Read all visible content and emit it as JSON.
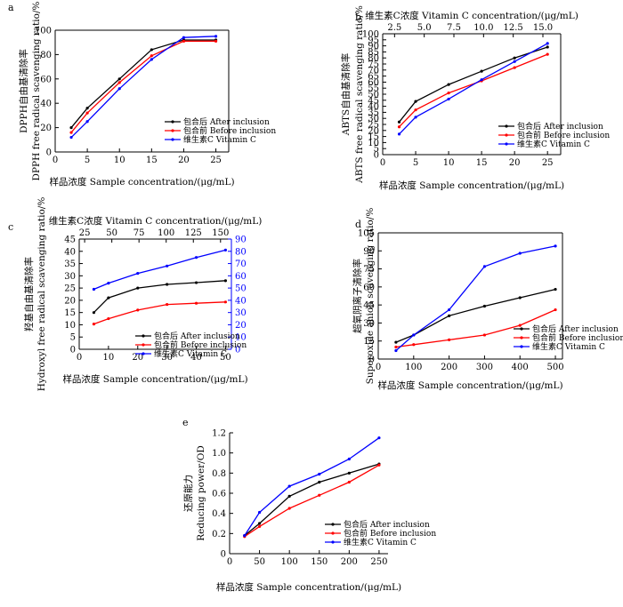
{
  "chart_data": [
    {
      "type": "line",
      "panel_label": "a",
      "xlabel": "样品浓度  Sample concentration/(μg/mL)",
      "ylabel": [
        "DPPH自由基清除率",
        "DPPH free radical scavenging ratio/%"
      ],
      "xlim": [
        0,
        27
      ],
      "ylim": [
        0,
        100
      ],
      "xticks": [
        0,
        5,
        10,
        15,
        20,
        25
      ],
      "yticks": [
        0,
        20,
        40,
        60,
        80,
        100
      ],
      "grid": false,
      "legend": "bottom-right",
      "series": [
        {
          "name": "包合后 After inclusion",
          "color": "#000000",
          "x": [
            2.5,
            5,
            10,
            15,
            20,
            25
          ],
          "y": [
            20,
            36,
            60,
            84,
            92,
            92
          ]
        },
        {
          "name": "包合前 Before inclusion",
          "color": "#ff0000",
          "x": [
            2.5,
            5,
            10,
            15,
            20,
            25
          ],
          "y": [
            16,
            32,
            57,
            79,
            91,
            91
          ]
        },
        {
          "name": "维生素C Vitamin C",
          "color": "#0000ff",
          "x": [
            2.5,
            5,
            10,
            15,
            20,
            25
          ],
          "y": [
            12,
            25,
            52,
            76,
            94,
            95
          ]
        }
      ]
    },
    {
      "type": "line",
      "panel_label": "b",
      "xlabel": "样品浓度  Sample concentration/(μg/mL)",
      "x2label": "维生素C浓度  Vitamin C concentration/(μg/mL)",
      "ylabel": [
        "ABTS自由基清除率",
        "ABTS free radical scavenging ratio/%"
      ],
      "xlim": [
        0,
        27
      ],
      "x2lim": [
        1.5,
        16.5
      ],
      "ylim": [
        0,
        100
      ],
      "xticks": [
        0,
        5,
        10,
        15,
        20,
        25
      ],
      "x2ticks": [
        "2.5",
        "5.0",
        "7.5",
        "10.0",
        "12.5",
        "15.0"
      ],
      "x2tickvals": [
        2.5,
        5,
        7.5,
        10,
        12.5,
        15
      ],
      "yticks": [
        0,
        5,
        10,
        15,
        20,
        25,
        30,
        35,
        40,
        45,
        50,
        55,
        60,
        65,
        70,
        75,
        80,
        85,
        90,
        95,
        100
      ],
      "grid": false,
      "legend": "bottom-right",
      "series": [
        {
          "name": "包合后 After inclusion",
          "color": "#000000",
          "x": [
            2.5,
            5,
            10,
            15,
            20,
            25
          ],
          "y": [
            27,
            44,
            58,
            69,
            80,
            89
          ]
        },
        {
          "name": "包合前 Before inclusion",
          "color": "#ff0000",
          "x": [
            2.5,
            5,
            10,
            15,
            20,
            25
          ],
          "y": [
            23,
            37,
            51,
            61,
            72,
            83
          ]
        },
        {
          "name": "维生素C Vitamin C",
          "color": "#0000ff",
          "x": [
            2.5,
            5,
            10,
            15,
            20,
            25
          ],
          "y": [
            17,
            31,
            46,
            62,
            77,
            92
          ]
        }
      ]
    },
    {
      "type": "line",
      "panel_label": "c",
      "xlabel": "样品浓度  Sample concentration/(μg/mL)",
      "x2label": "维生素C浓度  Vitamin C concentration/(μg/mL)",
      "ylabel": [
        "羟基自由基清除率",
        "Hydroxyl free radical scavenging ratio/%"
      ],
      "xlim": [
        0,
        52
      ],
      "x2lim": [
        20,
        160
      ],
      "ylim": [
        0,
        45
      ],
      "y2lim": [
        0,
        90
      ],
      "xticks": [
        0,
        10,
        20,
        30,
        40,
        50
      ],
      "x2ticks": [
        25,
        50,
        75,
        100,
        125,
        150
      ],
      "yticks": [
        0,
        5,
        10,
        15,
        20,
        25,
        30,
        35,
        40,
        45
      ],
      "y2ticks": [
        0,
        10,
        20,
        30,
        40,
        50,
        60,
        70,
        80,
        90
      ],
      "grid": false,
      "legend": "bottom-right",
      "series": [
        {
          "name": "包合后 After inclusion",
          "color": "#000000",
          "axis": "left",
          "x": [
            5,
            10,
            20,
            30,
            40,
            50
          ],
          "y": [
            15,
            21,
            25,
            26.5,
            27.2,
            28
          ]
        },
        {
          "name": "包合前 Before inclusion",
          "color": "#ff0000",
          "axis": "left",
          "x": [
            5,
            10,
            20,
            30,
            40,
            50
          ],
          "y": [
            10.3,
            12.5,
            16,
            18.3,
            18.8,
            19.3
          ]
        },
        {
          "name": "维生素C Vitamin C",
          "color": "#0000ff",
          "axis": "right",
          "x": [
            5,
            10,
            20,
            30,
            40,
            50
          ],
          "y": [
            49,
            54,
            62,
            68,
            75,
            81
          ]
        }
      ]
    },
    {
      "type": "line",
      "panel_label": "d",
      "xlabel": "样品浓度  Sample concentration/(μg/mL)",
      "ylabel": [
        "超氧阴离子清除率",
        "Superoxide anion scavenging ratio/%"
      ],
      "xlim": [
        0,
        520
      ],
      "ylim": [
        0,
        105
      ],
      "xticks": [
        0,
        100,
        200,
        300,
        400,
        500
      ],
      "yticks": [
        0,
        15,
        30,
        45,
        60,
        75,
        90,
        105
      ],
      "grid": false,
      "legend": "bottom-right",
      "series": [
        {
          "name": "包合后 After inclusion",
          "color": "#000000",
          "x": [
            50,
            100,
            200,
            300,
            400,
            500
          ],
          "y": [
            14,
            20,
            36,
            44,
            51,
            58
          ]
        },
        {
          "name": "包合前 Before inclusion",
          "color": "#ff0000",
          "x": [
            50,
            100,
            200,
            300,
            400,
            500
          ],
          "y": [
            10,
            12,
            16,
            20,
            28,
            41
          ]
        },
        {
          "name": "维生素C Vitamin C",
          "color": "#0000ff",
          "x": [
            50,
            100,
            200,
            300,
            400,
            500
          ],
          "y": [
            7,
            20,
            41,
            77,
            88,
            94
          ]
        }
      ]
    },
    {
      "type": "line",
      "panel_label": "e",
      "xlabel": "样品浓度  Sample concentration/(μg/mL)",
      "ylabel": [
        "还原能力",
        "Reducing power/OD"
      ],
      "xlim": [
        0,
        265
      ],
      "ylim": [
        0,
        1.2
      ],
      "xticks": [
        0,
        50,
        100,
        150,
        200,
        250
      ],
      "yticks": [
        "0",
        "0.2",
        "0.4",
        "0.6",
        "0.8",
        "1.0",
        "1.2"
      ],
      "ytickvals": [
        0,
        0.2,
        0.4,
        0.6,
        0.8,
        1.0,
        1.2
      ],
      "grid": false,
      "legend": "bottom-right",
      "series": [
        {
          "name": "包合后 After inclusion",
          "color": "#000000",
          "x": [
            25,
            50,
            100,
            150,
            200,
            250
          ],
          "y": [
            0.18,
            0.3,
            0.57,
            0.71,
            0.8,
            0.89
          ]
        },
        {
          "name": "包合前 Before inclusion",
          "color": "#ff0000",
          "x": [
            25,
            50,
            100,
            150,
            200,
            250
          ],
          "y": [
            0.17,
            0.27,
            0.45,
            0.58,
            0.71,
            0.88
          ]
        },
        {
          "name": "维生素C Vitamin C",
          "color": "#0000ff",
          "x": [
            25,
            50,
            100,
            150,
            200,
            250
          ],
          "y": [
            0.18,
            0.41,
            0.67,
            0.79,
            0.94,
            1.15
          ]
        }
      ]
    }
  ]
}
